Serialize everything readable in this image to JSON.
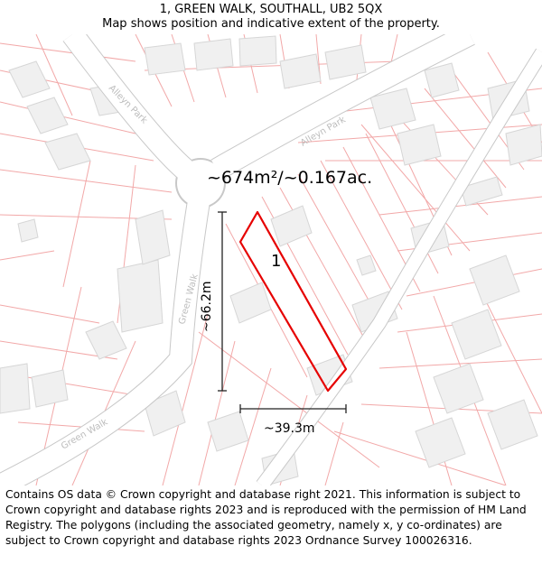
{
  "header": {
    "title": "1, GREEN WALK, SOUTHALL, UB2 5QX",
    "subtitle": "Map shows position and indicative extent of the property."
  },
  "map": {
    "street_labels": {
      "alleyn_park_west": "Alleyn Park",
      "alleyn_park_east": "Alleyn Park",
      "green_walk_north": "Green Walk",
      "green_walk_south": "Green Walk"
    },
    "area_label": "~674m²/~0.167ac.",
    "plot_number": "1",
    "height_measure": "~66.2m",
    "width_measure": "~39.3m",
    "colors": {
      "boundary": "#e60000",
      "parcel_lines": "#f2a8a8",
      "buildings": "#f0f0f0",
      "building_edges": "#d6d6d6",
      "roads": "#ffffff",
      "road_edges": "#c8c8c8"
    }
  },
  "footer": {
    "attribution": "Contains OS data © Crown copyright and database right 2021. This information is subject to Crown copyright and database rights 2023 and is reproduced with the permission of HM Land Registry. The polygons (including the associated geometry, namely x, y co-ordinates) are subject to Crown copyright and database rights 2023 Ordnance Survey 100026316."
  }
}
